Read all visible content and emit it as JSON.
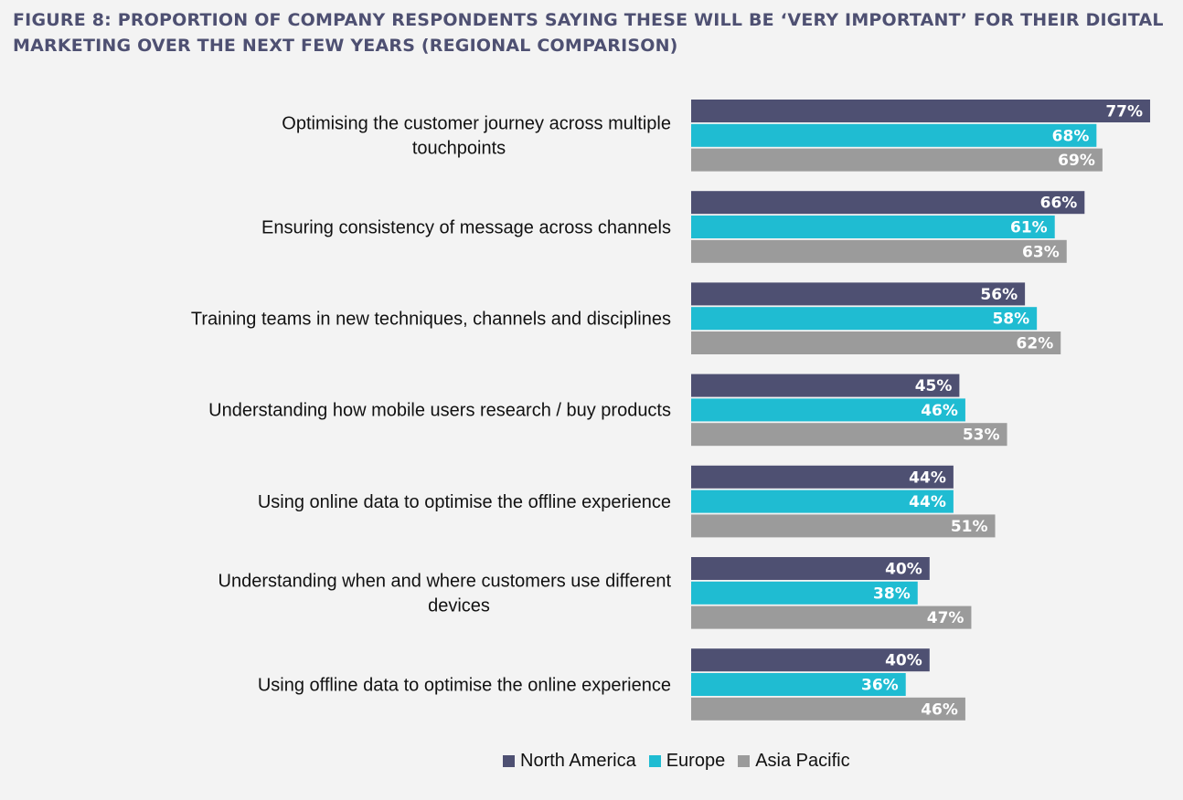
{
  "header": {
    "title": "FIGURE 8: PROPORTION OF COMPANY RESPONDENTS SAYING THESE WILL BE ‘VERY IMPORTANT’ FOR THEIR DIGITAL MARKETING OVER THE NEXT FEW YEARS (REGIONAL COMPARISON)"
  },
  "chart_data": {
    "type": "bar",
    "orientation": "horizontal",
    "title": "FIGURE 8: PROPORTION OF COMPANY RESPONDENTS SAYING THESE WILL BE ‘VERY IMPORTANT’ FOR THEIR DIGITAL MARKETING OVER THE NEXT FEW YEARS (REGIONAL COMPARISON)",
    "xlabel": "",
    "ylabel": "",
    "xlim": [
      0,
      100
    ],
    "grid": false,
    "legend_position": "bottom",
    "value_suffix": "%",
    "categories": [
      [
        "Optimising the customer journey across multiple",
        "touchpoints"
      ],
      [
        "Ensuring consistency of message across channels"
      ],
      [
        "Training teams in new techniques, channels and disciplines"
      ],
      [
        "Understanding how mobile users research / buy products"
      ],
      [
        "Using online data to optimise the offline experience"
      ],
      [
        "Understanding when and where customers use different",
        "devices"
      ],
      [
        "Using offline data to optimise the online experience"
      ]
    ],
    "series": [
      {
        "name": "North America",
        "color": "#4e5072",
        "values": [
          77,
          66,
          56,
          45,
          44,
          40,
          40
        ]
      },
      {
        "name": "Europe",
        "color": "#1fbcd2",
        "values": [
          68,
          61,
          58,
          46,
          44,
          38,
          36
        ]
      },
      {
        "name": "Asia Pacific",
        "color": "#9b9b9b",
        "values": [
          69,
          63,
          62,
          53,
          51,
          47,
          46
        ]
      }
    ]
  }
}
